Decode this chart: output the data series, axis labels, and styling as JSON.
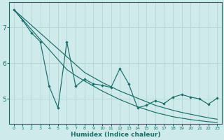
{
  "xlabel": "Humidex (Indice chaleur)",
  "background_color": "#ceeaea",
  "grid_color": "#b8d8d8",
  "line_color": "#1a6e6a",
  "x_data": [
    0,
    1,
    2,
    3,
    4,
    5,
    6,
    7,
    8,
    9,
    10,
    11,
    12,
    13,
    14,
    15,
    16,
    17,
    18,
    19,
    20,
    21,
    22,
    23
  ],
  "y_jagged": [
    7.5,
    7.2,
    6.85,
    6.6,
    5.35,
    4.75,
    6.6,
    5.35,
    5.55,
    5.42,
    5.38,
    5.32,
    5.85,
    5.42,
    4.75,
    4.82,
    4.95,
    4.87,
    5.05,
    5.12,
    5.05,
    5.0,
    4.85,
    5.02
  ],
  "y_upper": [
    7.5,
    7.28,
    7.06,
    6.84,
    6.62,
    6.4,
    6.18,
    5.96,
    5.74,
    5.6,
    5.46,
    5.34,
    5.22,
    5.12,
    5.02,
    4.92,
    4.82,
    4.75,
    4.68,
    4.62,
    4.57,
    4.52,
    4.47,
    4.43
  ],
  "y_lower": [
    7.5,
    7.22,
    6.94,
    6.66,
    6.38,
    6.1,
    5.82,
    5.65,
    5.5,
    5.36,
    5.22,
    5.1,
    4.98,
    4.88,
    4.78,
    4.7,
    4.62,
    4.56,
    4.5,
    4.46,
    4.42,
    4.39,
    4.36,
    4.34
  ],
  "xlim": [
    -0.5,
    23.5
  ],
  "ylim": [
    4.3,
    7.7
  ],
  "yticks": [
    5,
    6,
    7
  ],
  "xticks": [
    0,
    1,
    2,
    3,
    4,
    5,
    6,
    7,
    8,
    9,
    10,
    11,
    12,
    13,
    14,
    15,
    16,
    17,
    18,
    19,
    20,
    21,
    22,
    23
  ]
}
